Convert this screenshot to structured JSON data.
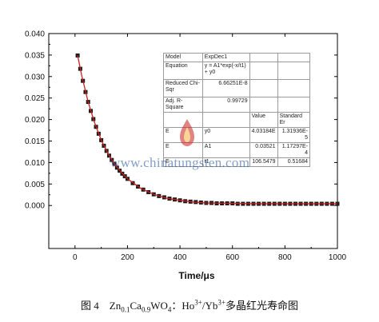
{
  "chart_data": {
    "type": "scatter",
    "xlabel": "Time/μs",
    "ylabel": "",
    "xlim": [
      -100,
      1000
    ],
    "ylim": [
      -0.01,
      0.04
    ],
    "xticks": [
      "0",
      "200",
      "400",
      "600",
      "800",
      "1000"
    ],
    "yticks": [
      "0.040",
      "0.035",
      "0.030",
      "0.025",
      "0.020",
      "0.015",
      "0.010",
      "0.005",
      "0.000"
    ],
    "grid": false,
    "colors": {
      "points": "#1a1a1a",
      "fit": "#cc1f1f"
    },
    "series": [
      {
        "kind": "points",
        "x": [
          10,
          20,
          30,
          40,
          50,
          60,
          70,
          80,
          90,
          100,
          110,
          120,
          130,
          140,
          150,
          160,
          170,
          180,
          190,
          200,
          220,
          240,
          260,
          280,
          300,
          320,
          340,
          360,
          380,
          400,
          420,
          440,
          460,
          480,
          500,
          520,
          540,
          560,
          580,
          600,
          620,
          640,
          660,
          680,
          700,
          720,
          740,
          760,
          780,
          800,
          820,
          840,
          860,
          880,
          900,
          920,
          940,
          960,
          980,
          1000
        ],
        "y": [
          0.0349,
          0.0318,
          0.029,
          0.0264,
          0.0241,
          0.022,
          0.0201,
          0.0183,
          0.0167,
          0.0152,
          0.0139,
          0.0127,
          0.0116,
          0.0106,
          0.0097,
          0.0088,
          0.0081,
          0.0074,
          0.0068,
          0.0062,
          0.0052,
          0.0044,
          0.0037,
          0.0031,
          0.0026,
          0.0022,
          0.0019,
          0.0016,
          0.0014,
          0.0012,
          0.001,
          0.0009,
          0.0008,
          0.0007,
          0.0006,
          0.0006,
          0.0005,
          0.0005,
          0.0005,
          0.0005,
          0.0004,
          0.0004,
          0.0004,
          0.0004,
          0.0004,
          0.0004,
          0.0004,
          0.0004,
          0.0004,
          0.0004,
          0.0004,
          0.0004,
          0.0004,
          0.0004,
          0.0004,
          0.0004,
          0.0004,
          0.0004,
          0.0004,
          0.0004
        ]
      },
      {
        "kind": "fit",
        "x": [
          10,
          25,
          50,
          75,
          100,
          125,
          150,
          175,
          200,
          250,
          300,
          350,
          400,
          450,
          500,
          600,
          700,
          800,
          900,
          1000
        ],
        "y": [
          0.0349,
          0.0304,
          0.0241,
          0.0192,
          0.0152,
          0.0122,
          0.0097,
          0.0078,
          0.0062,
          0.004,
          0.0026,
          0.0017,
          0.0012,
          0.0008,
          0.0006,
          0.0005,
          0.0004,
          0.0004,
          0.0004,
          0.0004
        ]
      }
    ]
  },
  "fit_table": {
    "model_label": "Model",
    "model_value": "ExpDec1",
    "equation_label": "Equation",
    "equation_value": "y = A1*exp(-x/t1) + y0",
    "chisqr_label": "Reduced Chi-Sqr",
    "chisqr_value": "6.66251E-8",
    "adjr_label": "Adj. R-Square",
    "adjr_value": "0.99729",
    "col_value": "Value",
    "col_error": "Standard Er",
    "rows": [
      {
        "tag": "E",
        "param": "y0",
        "value": "4.03184E",
        "error": "1.31936E-5"
      },
      {
        "tag": "E",
        "param": "A1",
        "value": "0.03521",
        "error": "1.17297E-4"
      },
      {
        "tag": "E",
        "param": "t1",
        "value": "106.5479",
        "error": "0.51684"
      }
    ]
  },
  "watermark": {
    "text": "www.chinatungsten.com",
    "logo_color": "#cc1f1f"
  },
  "caption": {
    "fig": "图 4",
    "zn": "Zn",
    "zn_sub": "0.1",
    "ca": "Ca",
    "ca_sub": "0.9",
    "wo": "WO",
    "wo_sub": "4",
    "colon": "：",
    "ho": "Ho",
    "ho_sup": "3+",
    "slash_yb": "/Yb",
    "yb_sup": "3+",
    "tail": "多晶红光寿命图"
  }
}
